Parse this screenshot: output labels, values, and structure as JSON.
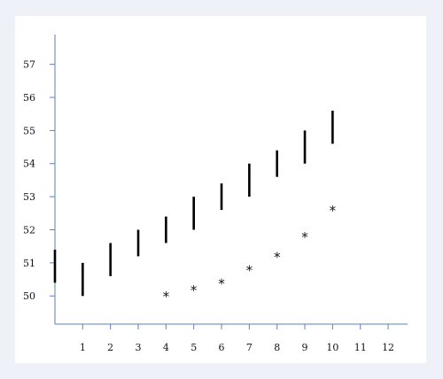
{
  "chart_data": {
    "type": "scatter",
    "title": "",
    "xlabel": "",
    "ylabel": "",
    "xlim": [
      0,
      12.7
    ],
    "ylim": [
      49.15,
      57.9
    ],
    "x_ticks": [
      1,
      2,
      3,
      4,
      5,
      6,
      7,
      8,
      9,
      10,
      11,
      12
    ],
    "y_ticks": [
      50,
      51,
      52,
      53,
      54,
      55,
      56,
      57
    ],
    "grid": false,
    "axis_color": "#5a7fc0",
    "mark_color": "#000000",
    "series": [
      {
        "marker": "vertical-bar",
        "points": [
          {
            "x": 0,
            "y_low": 50.4,
            "y_high": 51.4
          },
          {
            "x": 1,
            "y_low": 50.0,
            "y_high": 51.0
          },
          {
            "x": 2,
            "y_low": 50.6,
            "y_high": 51.6
          },
          {
            "x": 3,
            "y_low": 51.2,
            "y_high": 52.0
          },
          {
            "x": 4,
            "y_low": 51.6,
            "y_high": 52.4
          },
          {
            "x": 5,
            "y_low": 52.0,
            "y_high": 53.0
          },
          {
            "x": 6,
            "y_low": 52.6,
            "y_high": 53.4
          },
          {
            "x": 7,
            "y_low": 53.0,
            "y_high": 54.0
          },
          {
            "x": 8,
            "y_low": 53.6,
            "y_high": 54.4
          },
          {
            "x": 9,
            "y_low": 54.0,
            "y_high": 55.0
          },
          {
            "x": 10,
            "y_low": 54.6,
            "y_high": 55.6
          }
        ]
      },
      {
        "marker": "asterisk",
        "points": [
          {
            "x": 4,
            "y": 50.0
          },
          {
            "x": 5,
            "y": 50.2
          },
          {
            "x": 6,
            "y": 50.4
          },
          {
            "x": 7,
            "y": 50.8
          },
          {
            "x": 8,
            "y": 51.2
          },
          {
            "x": 9,
            "y": 51.8
          },
          {
            "x": 10,
            "y": 52.6
          }
        ]
      }
    ]
  }
}
